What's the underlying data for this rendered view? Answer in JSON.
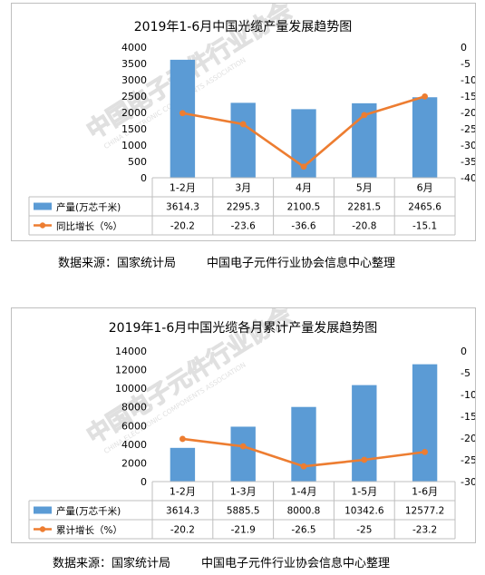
{
  "chart_data": [
    {
      "type": "bar",
      "title": "2019年1-6月中国光缆产量发展趋势图",
      "categories": [
        "1-2月",
        "3月",
        "4月",
        "5月",
        "6月"
      ],
      "series": [
        {
          "name": "产量(万芯千米)",
          "type": "bar",
          "axis": "left",
          "values": [
            3614.3,
            2295.3,
            2100.5,
            2281.5,
            2465.6
          ],
          "color": "#5b9bd5"
        },
        {
          "name": "同比增长（%）",
          "type": "line",
          "axis": "right",
          "values": [
            -20.2,
            -23.6,
            -36.6,
            -20.8,
            -15.1
          ],
          "color": "#ed7d31"
        }
      ],
      "table_values": [
        [
          "3614.3",
          "2295.3",
          "2100.5",
          "2281.5",
          "2465.6"
        ],
        [
          "-20.2",
          "-23.6",
          "-36.6",
          "-20.8",
          "-15.1"
        ]
      ],
      "ylim_left": [
        0,
        4000
      ],
      "ylim_right": [
        -40,
        0
      ],
      "yticks_left": [
        "4000",
        "3500",
        "3000",
        "2500",
        "2000",
        "1500",
        "1000",
        "500",
        "0"
      ],
      "yticks_right": [
        "0",
        "-5",
        "-10",
        "-15",
        "-20",
        "-25",
        "-30",
        "-35",
        "-40"
      ],
      "grid": false,
      "legend": "data-table"
    },
    {
      "type": "bar",
      "title": "2019年1-6月中国光缆各月累计产量发展趋势图",
      "categories": [
        "1-2月",
        "1-3月",
        "1-4月",
        "1-5月",
        "1-6月"
      ],
      "series": [
        {
          "name": "产量(万芯千米)",
          "type": "bar",
          "axis": "left",
          "values": [
            3614.3,
            5885.5,
            8000.8,
            10342.6,
            12577.2
          ],
          "color": "#5b9bd5"
        },
        {
          "name": "累计增长（%）",
          "type": "line",
          "axis": "right",
          "values": [
            -20.2,
            -21.9,
            -26.5,
            -25,
            -23.2
          ],
          "color": "#ed7d31"
        }
      ],
      "table_values": [
        [
          "3614.3",
          "5885.5",
          "8000.8",
          "10342.6",
          "12577.2"
        ],
        [
          "-20.2",
          "-21.9",
          "-26.5",
          "-25",
          "-23.2"
        ]
      ],
      "ylim_left": [
        0,
        14000
      ],
      "ylim_right": [
        -30,
        0
      ],
      "yticks_left": [
        "14000",
        "12000",
        "10000",
        "8000",
        "6000",
        "4000",
        "2000",
        "0"
      ],
      "yticks_right": [
        "0",
        "-5",
        "-10",
        "-15",
        "-20",
        "-25",
        "-30"
      ],
      "grid": false,
      "legend": "data-table"
    }
  ],
  "sources": [
    {
      "left": "数据来源：国家统计局",
      "right": "中国电子元件行业协会信息中心整理"
    },
    {
      "left": "数据来源：国家统计局",
      "right": "中国电子元件行业协会信息中心整理"
    }
  ],
  "watermark": {
    "text": "中国电子元件行业协会",
    "sub": "CHINA ELECTRONIC COMPONENTS ASSOCIATION",
    "color": "#c8c8c8"
  }
}
